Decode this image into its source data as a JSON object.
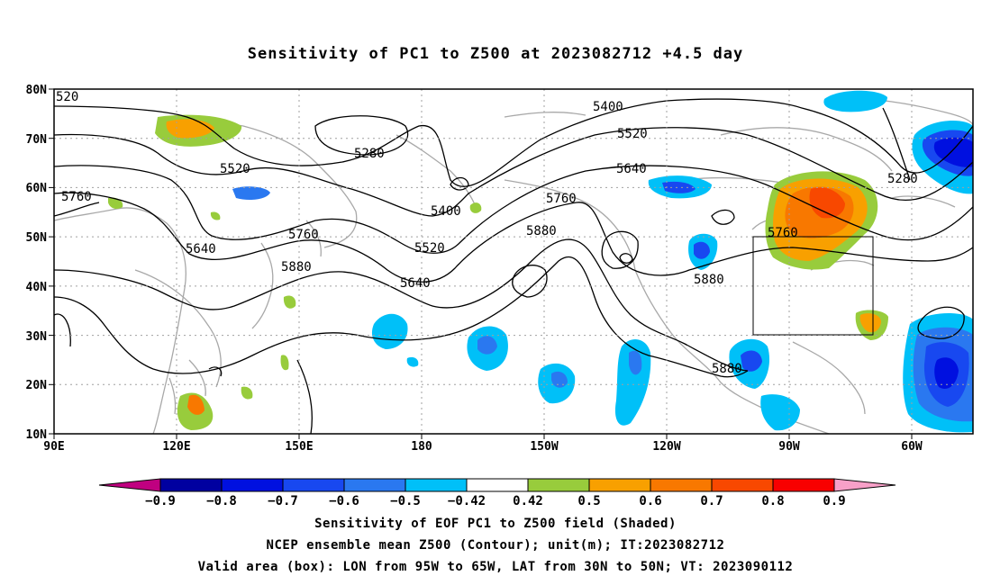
{
  "title": "Sensitivity of PC1 to Z500 at 2023082712 +4.5 day",
  "lat_labels": [
    "80N",
    "70N",
    "60N",
    "50N",
    "40N",
    "30N",
    "20N",
    "10N"
  ],
  "lon_labels": [
    "90E",
    "120E",
    "150E",
    "180",
    "150W",
    "120W",
    "90W",
    "60W"
  ],
  "contour_labels": [
    "5400",
    "5400",
    "5520",
    "5520",
    "5520",
    "5640",
    "5640",
    "5640",
    "5760",
    "5760",
    "5760",
    "5760",
    "5880",
    "5880",
    "5880",
    "5880",
    "5280",
    "5280"
  ],
  "corner_label": "520",
  "colorbar": {
    "labels": [
      "-0.9",
      "-0.8",
      "-0.7",
      "-0.6",
      "-0.5",
      "-0.42",
      "0.42",
      "0.5",
      "0.6",
      "0.7",
      "0.8",
      "0.9"
    ],
    "colors": [
      "#c00080",
      "#0000a0",
      "#0010e0",
      "#1848f0",
      "#2a78f0",
      "#00c0f8",
      "#ffffff",
      "#98cc3c",
      "#f8a000",
      "#f87800",
      "#f84800",
      "#f80000",
      "#f8a0c8"
    ]
  },
  "captions": [
    "Sensitivity of EOF PC1 to Z500 field (Shaded)",
    "NCEP ensemble mean Z500 (Contour); unit(m); IT:2023082712",
    "Valid area (box): LON from 95W to 65W, LAT from 30N to 50N; VT: 2023090112"
  ],
  "map_data": {
    "lon_range": [
      "90E",
      "60W"
    ],
    "lat_range": [
      "10N",
      "80N"
    ],
    "valid_box": {
      "lon": [
        "95W",
        "65W"
      ],
      "lat": [
        "30N",
        "50N"
      ]
    }
  }
}
